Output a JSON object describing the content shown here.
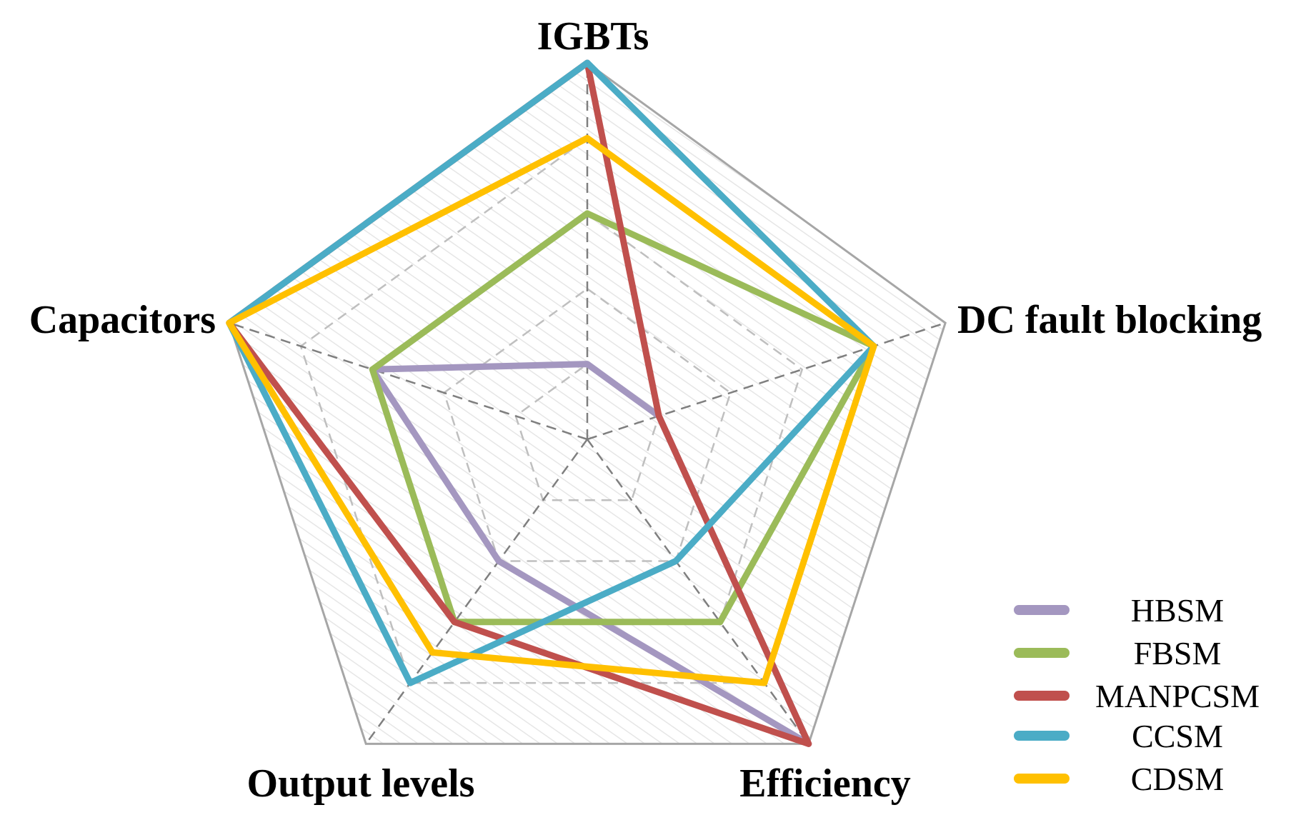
{
  "chart_data": {
    "type": "radar",
    "axes": [
      "IGBTs",
      "DC fault blocking",
      "Efficiency",
      "Output levels",
      "Capacitors"
    ],
    "rmax": 5,
    "grid_levels": [
      1,
      2,
      3,
      4,
      5
    ],
    "series": [
      {
        "name": "HBSM",
        "color": "#A497C0",
        "values": [
          1,
          1,
          5,
          2,
          3
        ]
      },
      {
        "name": "FBSM",
        "color": "#9BBB59",
        "values": [
          3,
          4,
          3,
          3,
          3
        ]
      },
      {
        "name": "MANPCSM",
        "color": "#C0504D",
        "values": [
          5,
          1,
          5,
          3,
          5
        ]
      },
      {
        "name": "CCSM",
        "color": "#4BACC6",
        "values": [
          5,
          4,
          2,
          4,
          5
        ]
      },
      {
        "name": "CDSM",
        "color": "#FFC000",
        "values": [
          4,
          4,
          4,
          3.5,
          5
        ]
      }
    ],
    "legend_position": "bottom-right"
  }
}
